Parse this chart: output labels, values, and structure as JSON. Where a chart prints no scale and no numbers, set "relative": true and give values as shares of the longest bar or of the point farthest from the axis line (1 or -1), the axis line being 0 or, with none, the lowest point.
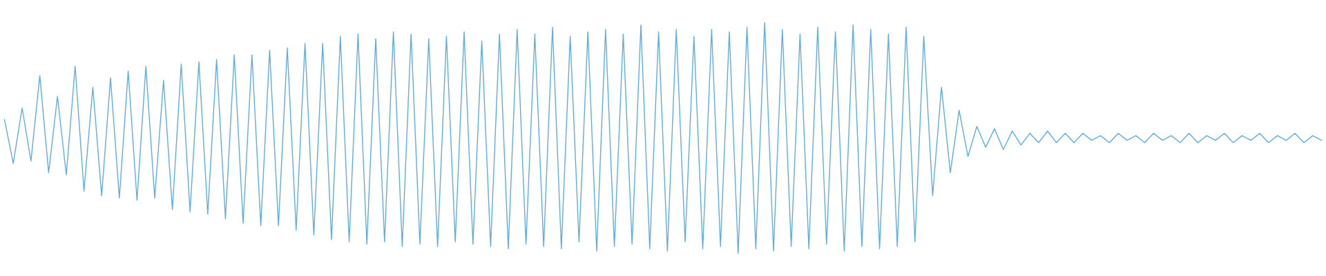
{
  "chart_data": {
    "type": "line",
    "relative": true,
    "grid": false,
    "legend": false,
    "categories": [
      null,
      null,
      null,
      null,
      null,
      null,
      null,
      null,
      null,
      null,
      null,
      null,
      null,
      null,
      null,
      null,
      null,
      null,
      null,
      null,
      null,
      null,
      null,
      null,
      null,
      null,
      null,
      null,
      null,
      null,
      null,
      null,
      null,
      null,
      null,
      null,
      null,
      null,
      null,
      null,
      null,
      null,
      null,
      null,
      null,
      null,
      null,
      null,
      null,
      null,
      null,
      null,
      null,
      null,
      null,
      null,
      null,
      null,
      null,
      null,
      null,
      null,
      null,
      null,
      null,
      null,
      null,
      null,
      null,
      null,
      null,
      null,
      null,
      null,
      null,
      null,
      null,
      null,
      null,
      null,
      null,
      null,
      null,
      null,
      null,
      null,
      null,
      null,
      null,
      null,
      null,
      null,
      null,
      null,
      null,
      null,
      null,
      null,
      null,
      null,
      null,
      null,
      null,
      null,
      null,
      null,
      null,
      null,
      null,
      null,
      null,
      null,
      null,
      null,
      null,
      null,
      null,
      null,
      null,
      null,
      null,
      null,
      null,
      null,
      null,
      null,
      null,
      null,
      null,
      null,
      null,
      null,
      null,
      null,
      null,
      null,
      null,
      null,
      null,
      null,
      null,
      null,
      null,
      null,
      null,
      null,
      null,
      null,
      null,
      null
    ],
    "series": [
      {
        "color": "#5dade2",
        "values": [
          0.58,
          0.39,
          0.63,
          0.4,
          0.77,
          0.35,
          0.68,
          0.34,
          0.81,
          0.27,
          0.72,
          0.25,
          0.76,
          0.24,
          0.79,
          0.23,
          0.81,
          0.24,
          0.75,
          0.19,
          0.82,
          0.18,
          0.83,
          0.17,
          0.84,
          0.15,
          0.86,
          0.13,
          0.86,
          0.12,
          0.88,
          0.12,
          0.89,
          0.1,
          0.91,
          0.08,
          0.91,
          0.06,
          0.94,
          0.05,
          0.95,
          0.04,
          0.93,
          0.05,
          0.96,
          0.03,
          0.95,
          0.04,
          0.93,
          0.03,
          0.94,
          0.05,
          0.96,
          0.04,
          0.92,
          0.03,
          0.95,
          0.02,
          0.97,
          0.04,
          0.95,
          0.03,
          0.98,
          0.02,
          0.94,
          0.05,
          0.96,
          0.01,
          0.97,
          0.03,
          0.95,
          0.04,
          0.99,
          0.02,
          0.96,
          0.01,
          0.97,
          0.05,
          0.94,
          0.02,
          0.97,
          0.03,
          0.96,
          0.0,
          0.98,
          0.02,
          1.0,
          0.01,
          0.97,
          0.03,
          0.95,
          0.02,
          0.98,
          0.04,
          0.96,
          0.01,
          0.99,
          0.03,
          0.97,
          0.02,
          0.95,
          0.03,
          0.98,
          0.05,
          0.94,
          0.25,
          0.72,
          0.35,
          0.62,
          0.42,
          0.55,
          0.46,
          0.54,
          0.45,
          0.53,
          0.47,
          0.52,
          0.48,
          0.53,
          0.48,
          0.52,
          0.48,
          0.52,
          0.49,
          0.51,
          0.48,
          0.52,
          0.49,
          0.51,
          0.48,
          0.52,
          0.49,
          0.51,
          0.48,
          0.52,
          0.48,
          0.51,
          0.49,
          0.52,
          0.48,
          0.51,
          0.49,
          0.52,
          0.48,
          0.51,
          0.49,
          0.52,
          0.48,
          0.51,
          0.49
        ]
      }
    ]
  }
}
